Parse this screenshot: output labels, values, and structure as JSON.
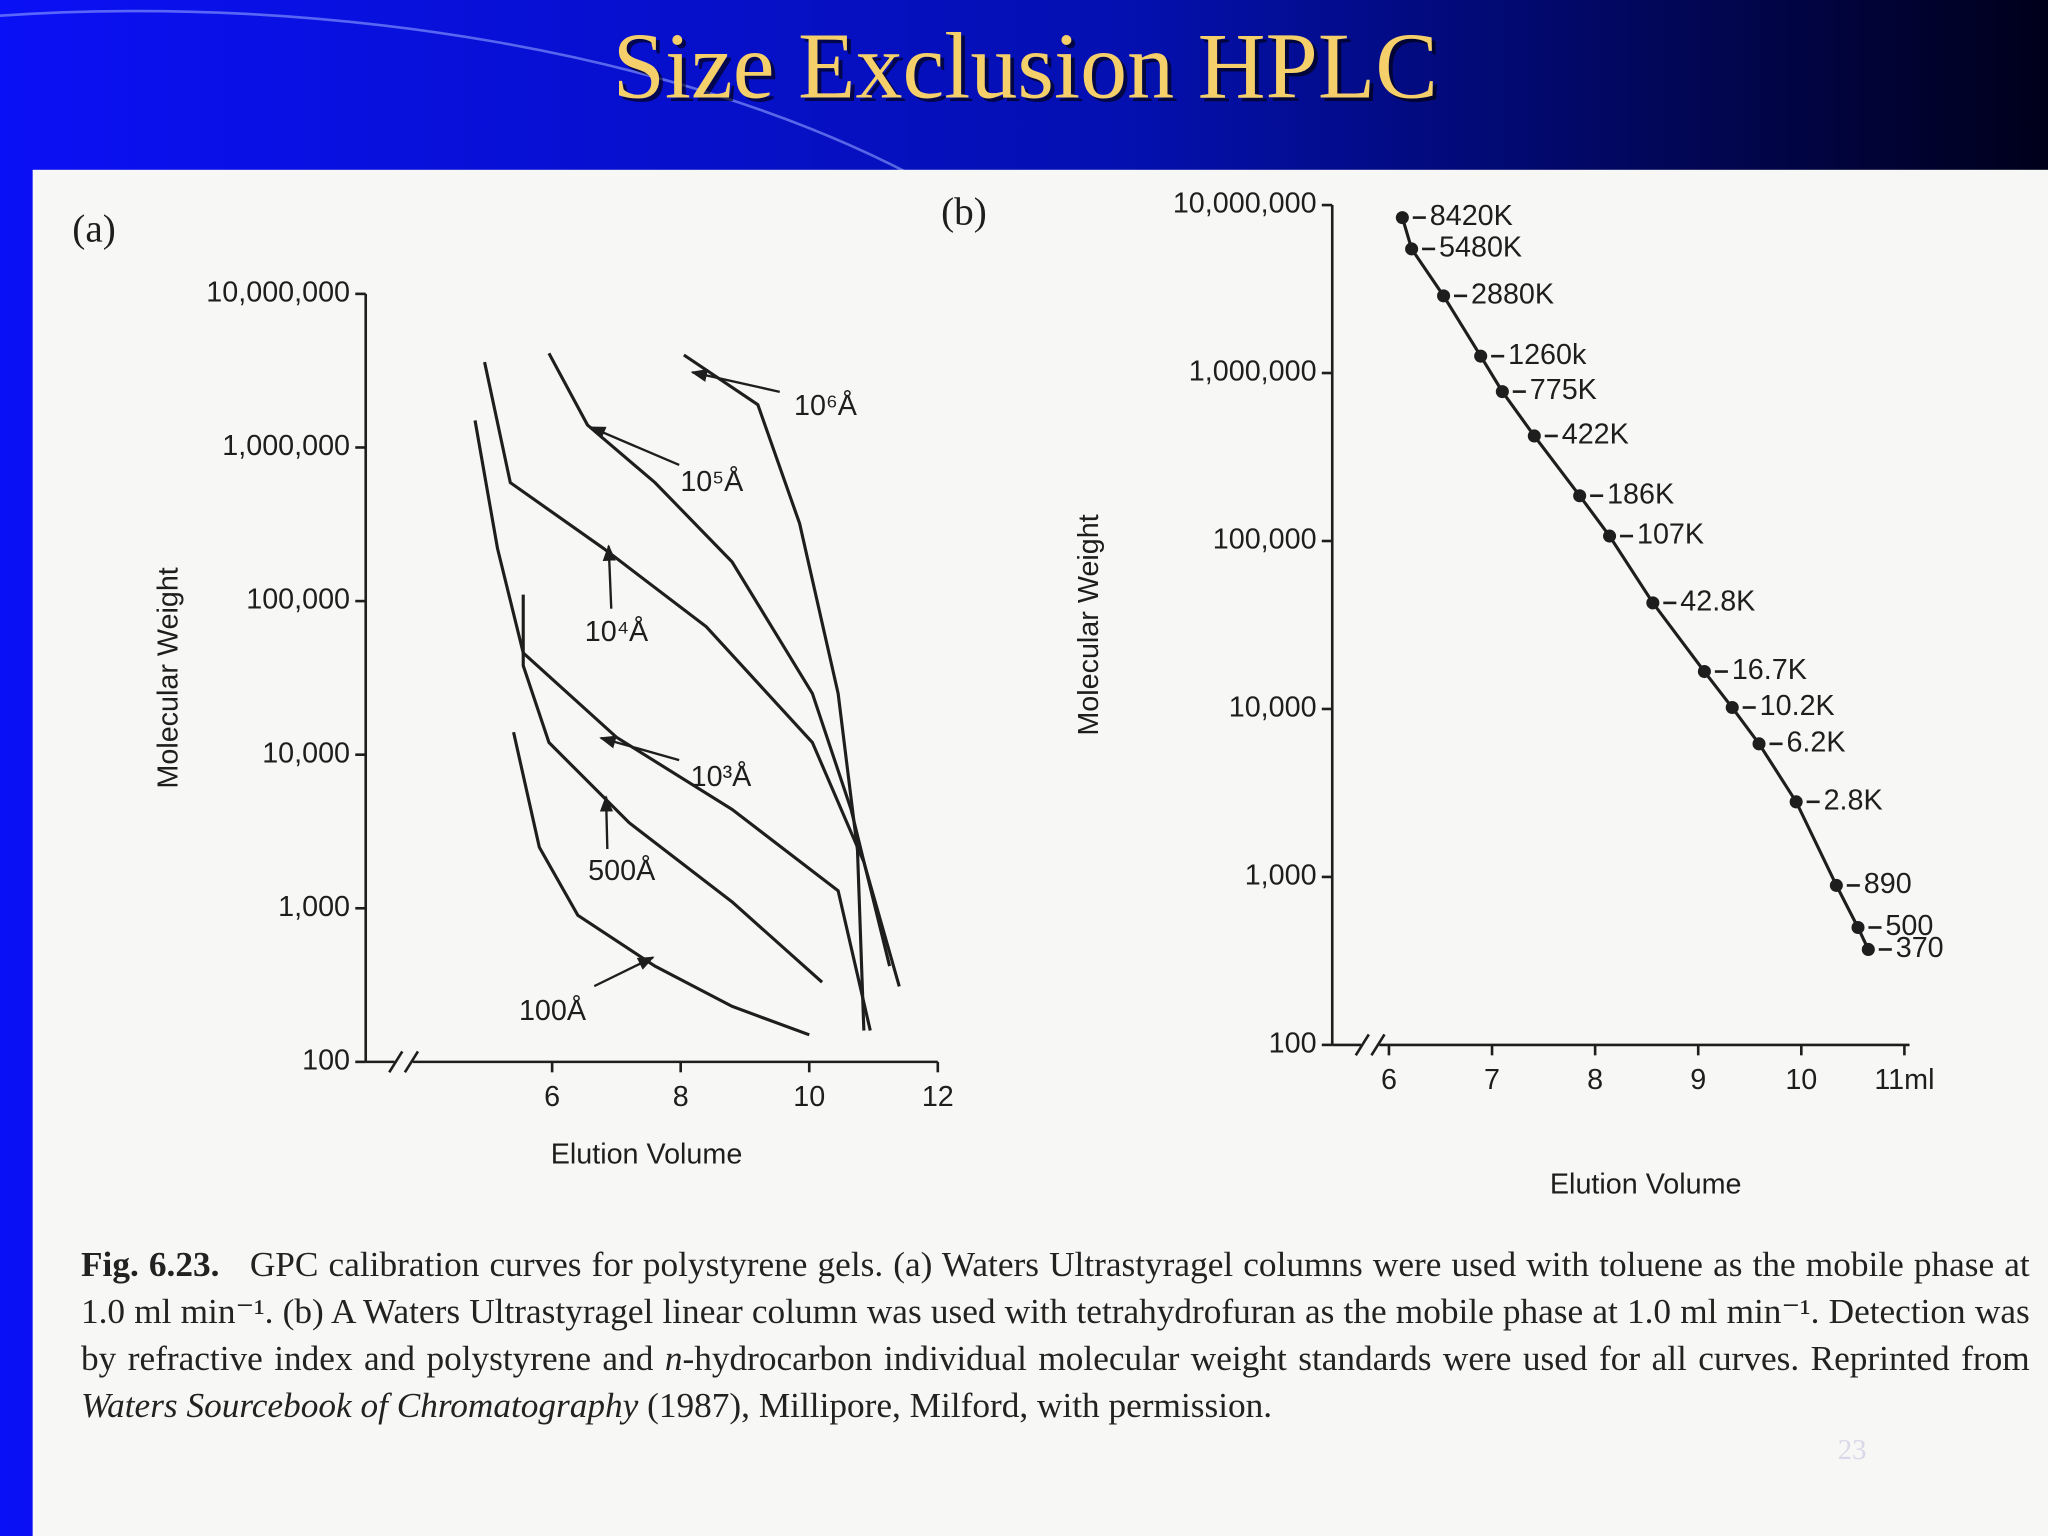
{
  "title": "Size Exclusion HPLC",
  "slide_number": "23",
  "caption": {
    "label": "Fig. 6.23.",
    "parts": [
      {
        "text": "GPC calibration curves for polystyrene gels. (a) Waters Ultrastyragel columns were used with toluene as the mobile phase at 1.0 ml min⁻¹. (b) A Waters Ultrastyragel linear column was used with tetrahydrofuran as the mobile phase at 1.0 ml min⁻¹. Detection was by refractive index and polystyrene and "
      },
      {
        "text": "n",
        "italic": true
      },
      {
        "text": "-hydrocarbon individual molecular weight standards were used for all curves. Reprinted from "
      },
      {
        "text": "Waters Sourcebook of Chromatography",
        "italic": true
      },
      {
        "text": " (1987), Millipore, Milford, with permission."
      }
    ]
  },
  "chart_data": [
    {
      "type": "line",
      "panel_label": "(a)",
      "x_label": "Elution Volume",
      "y_label": "Molecular Weight",
      "yscale": "log",
      "grid": false,
      "xlim": [
        3.1,
        12
      ],
      "ylim": [
        100,
        10000000
      ],
      "xticks": [
        6,
        8,
        10,
        12
      ],
      "yticks": [
        {
          "value": 10000000,
          "label": "10,000,000"
        },
        {
          "value": 1000000,
          "label": "1,000,000"
        },
        {
          "value": 100000,
          "label": "100,000"
        },
        {
          "value": 10000,
          "label": "10,000"
        },
        {
          "value": 1000,
          "label": "1,000"
        },
        100
      ],
      "series": [
        {
          "name": "100Å",
          "color": "#1e1e1e",
          "x": [
            5.4,
            5.8,
            6.4,
            7.6,
            8.8,
            10.0
          ],
          "values": [
            14000,
            2500,
            900,
            420,
            230,
            150
          ]
        },
        {
          "name": "500Å",
          "color": "#1e1e1e",
          "x": [
            5.55,
            5.55,
            5.95,
            7.2,
            8.8,
            10.2
          ],
          "values": [
            110000,
            38000,
            12000,
            3600,
            1100,
            330
          ]
        },
        {
          "name": "10³Å",
          "color": "#1e1e1e",
          "x": [
            4.8,
            5.15,
            5.55,
            7.0,
            8.8,
            10.45,
            10.95
          ],
          "values": [
            1500000,
            220000,
            46000,
            13000,
            4400,
            1300,
            160
          ]
        },
        {
          "name": "10⁴Å",
          "color": "#1e1e1e",
          "x": [
            4.95,
            5.35,
            6.8,
            8.4,
            10.05,
            10.85,
            11.4
          ],
          "values": [
            3600000,
            590000,
            220000,
            68000,
            12000,
            2000,
            310
          ]
        },
        {
          "name": "10⁵Å",
          "color": "#1e1e1e",
          "x": [
            5.95,
            6.55,
            7.6,
            8.8,
            10.05,
            10.65,
            11.25
          ],
          "values": [
            4100000,
            1400000,
            590000,
            180000,
            25000,
            4400,
            420
          ]
        },
        {
          "name": "10⁶Å",
          "color": "#1e1e1e",
          "x": [
            8.05,
            9.2,
            9.85,
            10.45,
            10.75,
            10.85
          ],
          "values": [
            4000000,
            1900000,
            320000,
            25000,
            2400,
            160
          ]
        }
      ]
    },
    {
      "type": "line",
      "markers": true,
      "panel_label": "(b)",
      "x_label": "Elution Volume",
      "y_label": "Molecular Weight",
      "yscale": "log",
      "grid": false,
      "xlim": [
        5.45,
        11.05
      ],
      "ylim": [
        100,
        10000000
      ],
      "color": "#1e1e1e",
      "xticks": [
        6,
        7,
        8,
        9,
        10,
        {
          "value": 11,
          "label": "11ml"
        }
      ],
      "yticks": [
        {
          "value": 10000000,
          "label": "10,000,000"
        },
        {
          "value": 1000000,
          "label": "1,000,000"
        },
        {
          "value": 100000,
          "label": "100,000"
        },
        {
          "value": 10000,
          "label": "10,000"
        },
        {
          "value": 1000,
          "label": "1,000"
        },
        100
      ],
      "x": [
        6.13,
        6.22,
        6.53,
        6.89,
        7.1,
        7.41,
        7.85,
        8.14,
        8.56,
        9.06,
        9.33,
        9.59,
        9.95,
        10.34,
        10.55,
        10.65
      ],
      "values": [
        8420000,
        5480000,
        2880000,
        1260000,
        775000,
        422000,
        186000,
        107000,
        42800,
        16700,
        10200,
        6200,
        2800,
        890,
        500,
        370
      ],
      "value_labels": [
        "8420K",
        "5480K",
        "2880K",
        "1260k",
        "775K",
        "422K",
        "186K",
        "107K",
        "42.8K",
        "16.7K",
        "10.2K",
        "6.2K",
        "2.8K",
        "890",
        "500",
        "370"
      ]
    }
  ]
}
